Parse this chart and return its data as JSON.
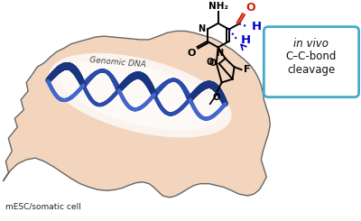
{
  "cell_color": "#f2d5bc",
  "cell_edge_color": "#666666",
  "dna_dark": "#1a3580",
  "dna_mid": "#2a4caa",
  "dna_light": "#4466cc",
  "box_edge_color": "#44aacc",
  "red_color": "#cc2200",
  "blue_color": "#0000cc",
  "black": "#111111",
  "genomic_dna_label": "Genomic DNA",
  "cell_label": "mESC/somatic cell",
  "box_line1": "in vivo",
  "box_line2": "C–C-bond",
  "box_line3": "cleavage"
}
